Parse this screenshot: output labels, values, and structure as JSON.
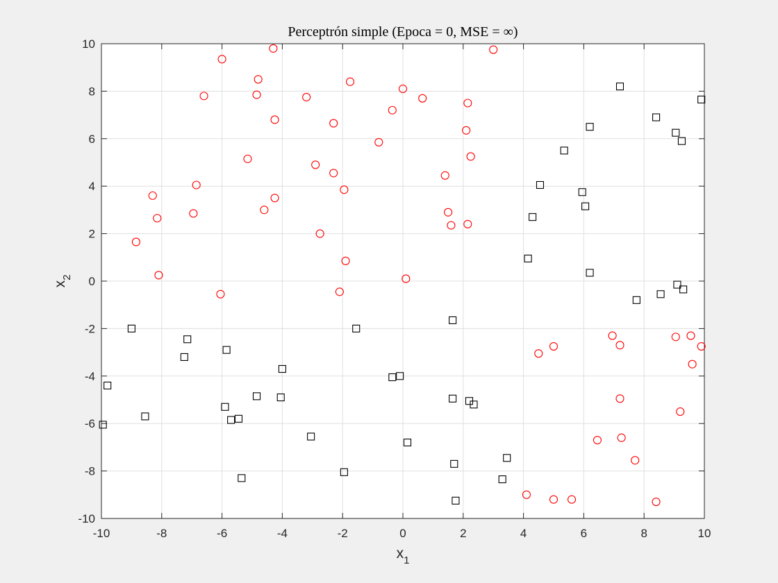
{
  "chart_data": {
    "type": "scatter",
    "title": "Perceptrón simple (Epoca = 0, MSE = ∞)",
    "xlabel_base": "x",
    "xlabel_sub": "1",
    "ylabel_base": "x",
    "ylabel_sub": "2",
    "xlim": [
      -10,
      10
    ],
    "ylim": [
      -10,
      10
    ],
    "xticks": [
      -10,
      -8,
      -6,
      -4,
      -2,
      0,
      2,
      4,
      6,
      8,
      10
    ],
    "yticks": [
      -10,
      -8,
      -6,
      -4,
      -2,
      0,
      2,
      4,
      6,
      8,
      10
    ],
    "grid": true,
    "series": [
      {
        "marker": "circle",
        "color": "#ff0000",
        "points": [
          [
            -4.3,
            9.8
          ],
          [
            -6.0,
            9.35
          ],
          [
            3.0,
            9.75
          ],
          [
            -4.8,
            8.5
          ],
          [
            -1.75,
            8.4
          ],
          [
            -6.6,
            7.8
          ],
          [
            -4.85,
            7.85
          ],
          [
            -3.2,
            7.75
          ],
          [
            0.0,
            8.1
          ],
          [
            0.65,
            7.7
          ],
          [
            2.15,
            7.5
          ],
          [
            -0.35,
            7.2
          ],
          [
            -4.25,
            6.8
          ],
          [
            -2.3,
            6.65
          ],
          [
            2.1,
            6.35
          ],
          [
            -0.8,
            5.85
          ],
          [
            2.25,
            5.25
          ],
          [
            -5.15,
            5.15
          ],
          [
            -2.9,
            4.9
          ],
          [
            -2.3,
            4.55
          ],
          [
            1.4,
            4.45
          ],
          [
            -6.85,
            4.05
          ],
          [
            -1.95,
            3.85
          ],
          [
            -8.3,
            3.6
          ],
          [
            -4.25,
            3.5
          ],
          [
            -4.6,
            3.0
          ],
          [
            1.5,
            2.9
          ],
          [
            -6.95,
            2.85
          ],
          [
            -8.15,
            2.65
          ],
          [
            1.6,
            2.35
          ],
          [
            2.15,
            2.4
          ],
          [
            -2.75,
            2.0
          ],
          [
            -8.85,
            1.65
          ],
          [
            -1.9,
            0.85
          ],
          [
            -8.1,
            0.25
          ],
          [
            0.1,
            0.1
          ],
          [
            -6.05,
            -0.55
          ],
          [
            -2.1,
            -0.45
          ],
          [
            6.95,
            -2.3
          ],
          [
            7.2,
            -2.7
          ],
          [
            9.05,
            -2.35
          ],
          [
            9.55,
            -2.3
          ],
          [
            9.9,
            -2.75
          ],
          [
            5.0,
            -2.75
          ],
          [
            4.5,
            -3.05
          ],
          [
            9.6,
            -3.5
          ],
          [
            7.2,
            -4.95
          ],
          [
            9.2,
            -5.5
          ],
          [
            6.45,
            -6.7
          ],
          [
            7.25,
            -6.6
          ],
          [
            7.7,
            -7.55
          ],
          [
            4.1,
            -9.0
          ],
          [
            5.0,
            -9.2
          ],
          [
            5.6,
            -9.2
          ],
          [
            8.4,
            -9.3
          ]
        ]
      },
      {
        "marker": "square",
        "color": "#000000",
        "points": [
          [
            7.2,
            8.2
          ],
          [
            9.9,
            7.65
          ],
          [
            8.4,
            6.9
          ],
          [
            6.2,
            6.5
          ],
          [
            9.05,
            6.25
          ],
          [
            9.25,
            5.9
          ],
          [
            5.35,
            5.5
          ],
          [
            4.55,
            4.05
          ],
          [
            5.95,
            3.75
          ],
          [
            6.05,
            3.15
          ],
          [
            4.3,
            2.7
          ],
          [
            4.15,
            0.95
          ],
          [
            6.2,
            0.35
          ],
          [
            9.1,
            -0.15
          ],
          [
            9.3,
            -0.35
          ],
          [
            8.55,
            -0.55
          ],
          [
            7.75,
            -0.8
          ],
          [
            1.65,
            -1.65
          ],
          [
            -1.55,
            -2.0
          ],
          [
            -9.0,
            -2.0
          ],
          [
            -7.15,
            -2.45
          ],
          [
            -7.25,
            -3.2
          ],
          [
            -5.85,
            -2.9
          ],
          [
            -4.0,
            -3.7
          ],
          [
            -9.8,
            -4.4
          ],
          [
            -0.35,
            -4.05
          ],
          [
            -0.1,
            -4.0
          ],
          [
            -4.85,
            -4.85
          ],
          [
            -4.05,
            -4.9
          ],
          [
            1.65,
            -4.95
          ],
          [
            2.2,
            -5.05
          ],
          [
            2.35,
            -5.2
          ],
          [
            -5.9,
            -5.3
          ],
          [
            -8.55,
            -5.7
          ],
          [
            -5.7,
            -5.85
          ],
          [
            -5.45,
            -5.8
          ],
          [
            -9.95,
            -6.05
          ],
          [
            -3.05,
            -6.55
          ],
          [
            0.15,
            -6.8
          ],
          [
            3.45,
            -7.45
          ],
          [
            1.7,
            -7.7
          ],
          [
            -1.95,
            -8.05
          ],
          [
            -5.35,
            -8.3
          ],
          [
            3.3,
            -8.35
          ],
          [
            1.75,
            -9.25
          ]
        ]
      }
    ]
  }
}
